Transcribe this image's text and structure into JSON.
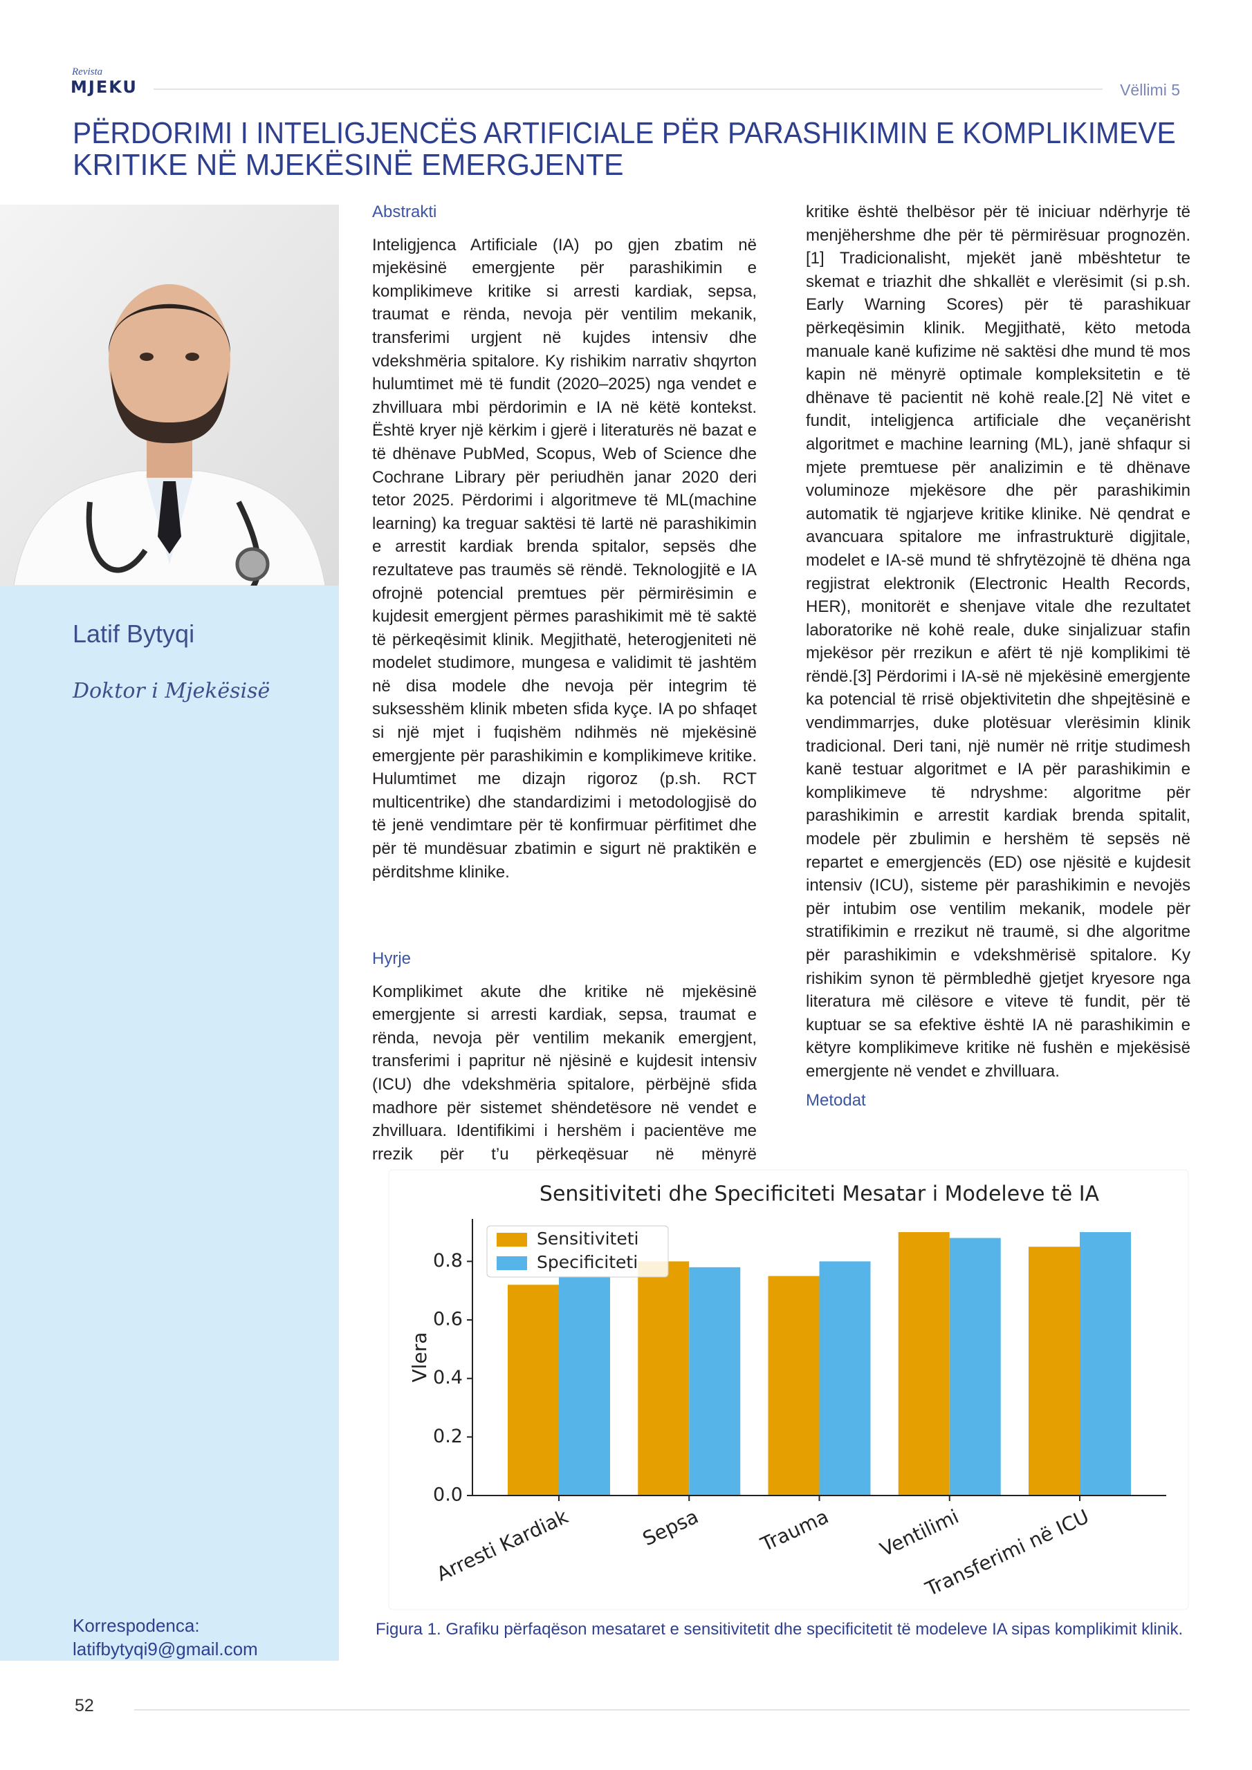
{
  "header": {
    "logo_small": "Revista",
    "logo": "MJEKU",
    "volume": "Vëllimi 5"
  },
  "title": [
    "PËRDORIMI I INTELIGJENCËS ARTIFICIALE PËR PARASHIKIMIN E KOMPLIKIMEVE",
    "KRITIKE NË MJEKËSINË EMERGJENTE"
  ],
  "author": {
    "name": "Latif Bytyqi",
    "role": "Doktor i Mjekësisë",
    "correspondence_label": "Korrespodenca:",
    "email": "latifbytyqi9@gmail.com"
  },
  "abstract": {
    "heading": "Abstrakti",
    "text": "Inteligjenca Artificiale (IA) po gjen zbatim në mjekësinë emergjente për parashikimin e komplikimeve kritike si arresti kardiak, sepsa, traumat e rënda, nevoja për ventilim mekanik, transferimi urgjent në kujdes intensiv dhe vdekshmëria spitalore. Ky rishikim narrativ shqyrton hulumtimet më të fundit (2020–2025) nga vendet e zhvilluara mbi përdorimin e IA në këtë kontekst. Është kryer një kërkim i gjerë i literaturës në bazat e të dhënave PubMed, Scopus, Web of Science dhe Cochrane Library për periudhën janar 2020 deri tetor 2025. Përdorimi i algoritmeve të ML(machine learning) ka treguar saktësi të lartë në parashikimin e arrestit kardiak brenda spitalor, sepsës dhe rezultateve pas traumës së rëndë. Teknologjitë e IA ofrojnë potencial premtues për përmirësimin e kujdesit emergjent përmes parashikimit më të saktë të përkeqësimit klinik. Megjithatë, heterogjeniteti në modelet studimore, mungesa e validimit të jashtëm në disa modele dhe nevoja për integrim të suksesshëm klinik mbeten sfida kyçe. IA po shfaqet si një mjet i fuqishëm ndihmës në mjekësinë emergjente për parashikimin e komplikimeve kritike. Hulumtimet me dizajn rigoroz (p.sh. RCT multicentrike) dhe standardizimi i metodologjisë do të jenë vendimtare për të konfirmuar përfitimet dhe për të mundësuar zbatimin e sigurt në praktikën e përditshme klinike."
  },
  "introduction": {
    "heading": "Hyrje",
    "paragraphs": [
      "Komplikimet akute dhe kritike në mjekësinë emergjente si arresti kardiak, sepsa, traumat e rënda, nevoja për ventilim mekanik emergjent, transferimi i papritur në njësinë e kujdesit intensiv (ICU) dhe vdekshmëria spitalore, përbëjnë sfida madhore për sistemet shëndetësore në vendet e zhvilluara. Identifikimi i hershëm i pacientëve me rrezik për t’u përkeqësuar në mënyrë",
      "kritike është thelbësor për të iniciuar ndërhyrje të menjëhershme dhe për të përmirësuar prognozën.[1] Tradicionalisht, mjekët janë mbështetur te skemat e triazhit dhe shkallët e vlerësimit (si p.sh. Early Warning Scores) për të parashikuar përkeqësimin klinik. Megjithatë, këto metoda manuale kanë kufizime në saktësi dhe mund të mos kapin në mënyrë optimale kompleksitetin e të dhënave të pacientit në kohë reale.[2] Në vitet e fundit, inteligjenca artificiale dhe veçanërisht algoritmet e machine learning (ML), janë shfaqur si mjete premtuese për analizimin e të dhënave voluminoze mjekësore dhe për parashikimin automatik të ngjarjeve kritike klinike. Në qendrat e avancuara spitalore me infrastrukturë digjitale, modelet e IA-së mund të shfrytëzojnë të dhëna nga regjistrat elektronik (Electronic Health Records, HER), monitorët e shenjave vitale dhe rezultatet laboratorike në kohë reale, duke sinjalizuar stafin mjekësor për rrezikun e afërt të një komplikimi të rëndë.[3] Përdorimi i IA-së në mjekësinë emergjente ka potencial të rrisë objektivitetin dhe shpejtësinë e vendimmarrjes, duke plotësuar vlerësimin klinik tradicional. Deri tani, një numër në rritje studimesh kanë testuar algoritmet e IA për parashikimin e komplikimeve të ndryshme: algoritme për parashikimin e arrestit kardiak brenda spitalit, modele për zbulimin e hershëm të sepsës në repartet e emergjencës (ED) ose njësitë e kujdesit intensiv (ICU), sisteme për parashikimin e nevojës për intubim ose ventilim mekanik, modele për stratifikimin e rrezikut në traumë, si dhe algoritme për parashikimin e vdekshmërisë spitalore. Ky rishikim synon të përmbledhë gjetjet kryesore nga literatura më cilësore e viteve të fundit, për të kuptuar se sa efektive është IA në parashikimin e këtyre komplikimeve kritike në fushën  e mjekësisë emergjente në vendet e zhvilluara."
    ]
  },
  "methods": {
    "heading": "Metodat"
  },
  "chart_data": {
    "type": "bar",
    "title": "Sensitiviteti dhe Specificiteti Mesatar i Modeleve të IA",
    "ylabel": "Vlera",
    "categories": [
      "Arresti Kardiak",
      "Sepsa",
      "Trauma",
      "Ventilimi",
      "Transferimi në ICU"
    ],
    "series": [
      {
        "name": "Sensitiviteti",
        "color": "#e69f00",
        "values": [
          0.72,
          0.8,
          0.75,
          0.9,
          0.85
        ]
      },
      {
        "name": "Specificiteti",
        "color": "#56b4e9",
        "values": [
          0.75,
          0.78,
          0.8,
          0.88,
          0.9
        ]
      }
    ],
    "ylim": [
      0,
      0.945
    ],
    "yticks": [
      {
        "value": 0,
        "label": "0.0"
      },
      0.2,
      0.4,
      0.6,
      0.8
    ],
    "grid": false,
    "legend": "upper left"
  },
  "figure_caption": "Figura 1. Grafiku përfaqëson mesataret e sensitivitetit dhe specificitetit të modeleve IA sipas komplikimit klinik.",
  "footer": {
    "page": 52
  }
}
